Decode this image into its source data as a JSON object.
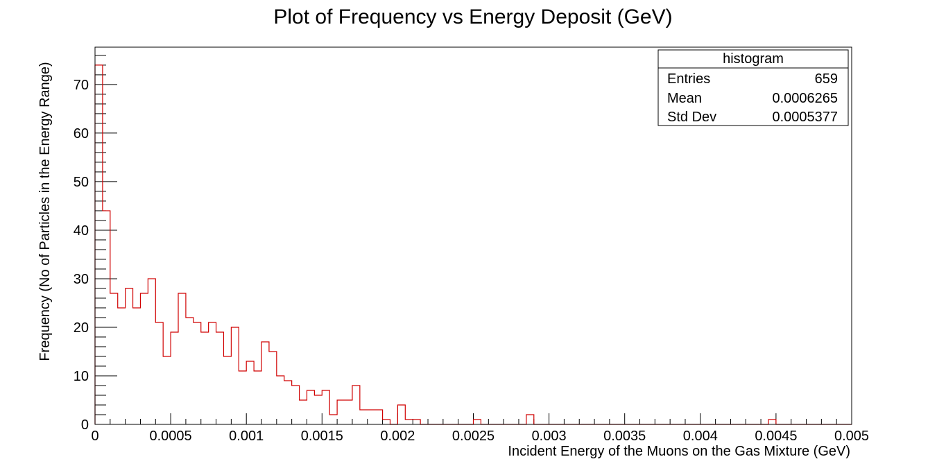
{
  "chart_data": {
    "type": "bar",
    "title": "Plot of Frequency  vs Energy Deposit  (GeV)",
    "xlabel": "Incident Energy of the Muons on the Gas Mixture (GeV)",
    "ylabel": "Frequency (No of Particles in the Energy Range)",
    "xlim": [
      0,
      0.005
    ],
    "ylim": [
      0,
      77.7
    ],
    "x_ticks": [
      0,
      0.0005,
      0.001,
      0.0015,
      0.002,
      0.0025,
      0.003,
      0.0035,
      0.004,
      0.0045,
      0.005
    ],
    "x_tick_labels": [
      "0",
      "0.0005",
      "0.001",
      "0.0015",
      "0.002",
      "0.0025",
      "0.003",
      "0.0035",
      "0.004",
      "0.0045",
      "0.005"
    ],
    "y_ticks": [
      0,
      10,
      20,
      30,
      40,
      50,
      60,
      70
    ],
    "y_tick_labels": [
      "0",
      "10",
      "20",
      "30",
      "40",
      "50",
      "60",
      "70"
    ],
    "bin_width": 5e-05,
    "series": [
      {
        "color": "#d00000",
        "values": [
          74,
          44,
          27,
          24,
          28,
          24,
          27,
          30,
          21,
          14,
          19,
          27,
          22,
          21,
          19,
          21,
          19,
          14,
          20,
          11,
          13,
          11,
          17,
          15,
          10,
          9,
          8,
          5,
          7,
          6,
          7,
          2,
          5,
          5,
          8,
          3,
          3,
          3,
          1,
          0,
          4,
          1,
          1,
          0,
          0,
          0,
          0,
          0,
          0,
          0,
          1,
          0,
          0,
          0,
          0,
          0,
          0,
          2,
          0,
          0,
          0,
          0,
          0,
          0,
          0,
          0,
          0,
          0,
          0,
          0,
          0,
          0,
          0,
          0,
          0,
          0,
          0,
          0,
          0,
          0,
          0,
          0,
          0,
          0,
          0,
          0,
          0,
          0,
          0,
          1,
          0,
          0,
          0,
          0,
          0,
          0,
          0,
          0,
          0,
          0
        ]
      }
    ],
    "grid": false,
    "legend": "none",
    "stats_box": {
      "title": "histogram",
      "rows": [
        {
          "label": "Entries",
          "value": "659"
        },
        {
          "label": "Mean",
          "value": "0.0006265"
        },
        {
          "label": "Std Dev",
          "value": "0.0005377"
        }
      ],
      "placement": "top-right"
    }
  }
}
